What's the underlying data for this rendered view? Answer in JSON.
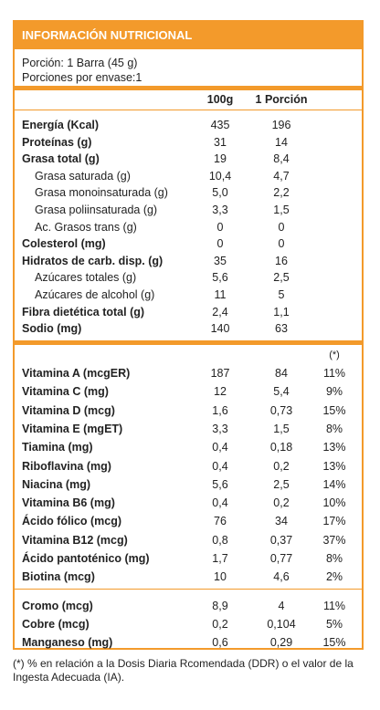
{
  "title": "INFORMACIÓN NUTRICIONAL",
  "serving": {
    "portion": "Porción: 1 Barra (45 g)",
    "per_pack": "Porciones por envase:1"
  },
  "columns": {
    "c1": "100g",
    "c2": "1 Porción",
    "c3": "(*)"
  },
  "macros": [
    {
      "label": "Energía (Kcal)",
      "v100": "435",
      "vp": "196",
      "bold": true
    },
    {
      "label": "Proteínas (g)",
      "v100": "31",
      "vp": "14",
      "bold": true
    },
    {
      "label": "Grasa total (g)",
      "v100": "19",
      "vp": "8,4",
      "bold": true
    },
    {
      "label": "Grasa saturada (g)",
      "v100": "10,4",
      "vp": "4,7",
      "bold": false
    },
    {
      "label": "Grasa monoinsaturada (g)",
      "v100": "5,0",
      "vp": "2,2",
      "bold": false
    },
    {
      "label": "Grasa poliinsaturada (g)",
      "v100": "3,3",
      "vp": "1,5",
      "bold": false
    },
    {
      "label": "Ac. Grasos trans (g)",
      "v100": "0",
      "vp": "0",
      "bold": false
    },
    {
      "label": "Colesterol (mg)",
      "v100": "0",
      "vp": "0",
      "bold": true
    },
    {
      "label": "Hidratos de carb. disp. (g)",
      "v100": "35",
      "vp": "16",
      "bold": true
    },
    {
      "label": "Azúcares totales (g)",
      "v100": "5,6",
      "vp": "2,5",
      "bold": false
    },
    {
      "label": "Azúcares de alcohol (g)",
      "v100": "11",
      "vp": "5",
      "bold": false
    },
    {
      "label": "Fibra dietética total (g)",
      "v100": "2,4",
      "vp": "1,1",
      "bold": true
    },
    {
      "label": "Sodio (mg)",
      "v100": "140",
      "vp": "63",
      "bold": true
    }
  ],
  "vitamins": [
    {
      "label": "Vitamina A (mcgER)",
      "v100": "187",
      "vp": "84",
      "pct": "11%"
    },
    {
      "label": "Vitamina C (mg)",
      "v100": "12",
      "vp": "5,4",
      "pct": "9%"
    },
    {
      "label": "Vitamina D (mcg)",
      "v100": "1,6",
      "vp": "0,73",
      "pct": "15%"
    },
    {
      "label": "Vitamina E (mgET)",
      "v100": "3,3",
      "vp": "1,5",
      "pct": "8%"
    },
    {
      "label": "Tiamina (mg)",
      "v100": "0,4",
      "vp": "0,18",
      "pct": "13%"
    },
    {
      "label": "Riboflavina (mg)",
      "v100": "0,4",
      "vp": "0,2",
      "pct": "13%"
    },
    {
      "label": "Niacina (mg)",
      "v100": "5,6",
      "vp": "2,5",
      "pct": "14%"
    },
    {
      "label": "Vitamina B6 (mg)",
      "v100": "0,4",
      "vp": "0,2",
      "pct": "10%"
    },
    {
      "label": "Ácido fólico (mcg)",
      "v100": "76",
      "vp": "34",
      "pct": "17%"
    },
    {
      "label": "Vitamina B12 (mcg)",
      "v100": "0,8",
      "vp": "0,37",
      "pct": "37%"
    },
    {
      "label": "Ácido pantoténico (mg)",
      "v100": "1,7",
      "vp": "0,77",
      "pct": "8%"
    },
    {
      "label": "Biotina (mcg)",
      "v100": "10",
      "vp": "4,6",
      "pct": "2%"
    }
  ],
  "minerals": [
    {
      "label": "Cromo (mcg)",
      "v100": "8,9",
      "vp": "4",
      "pct": "11%"
    },
    {
      "label": "Cobre (mcg)",
      "v100": "0,2",
      "vp": "0,104",
      "pct": "5%"
    },
    {
      "label": "Manganeso (mg)",
      "v100": "0,6",
      "vp": "0,29",
      "pct": "15%"
    }
  ],
  "footnote": "(*) % en relación a la Dosis Diaria Rcomendada (DDR) o el valor de la Ingesta Adecuada (IA)."
}
